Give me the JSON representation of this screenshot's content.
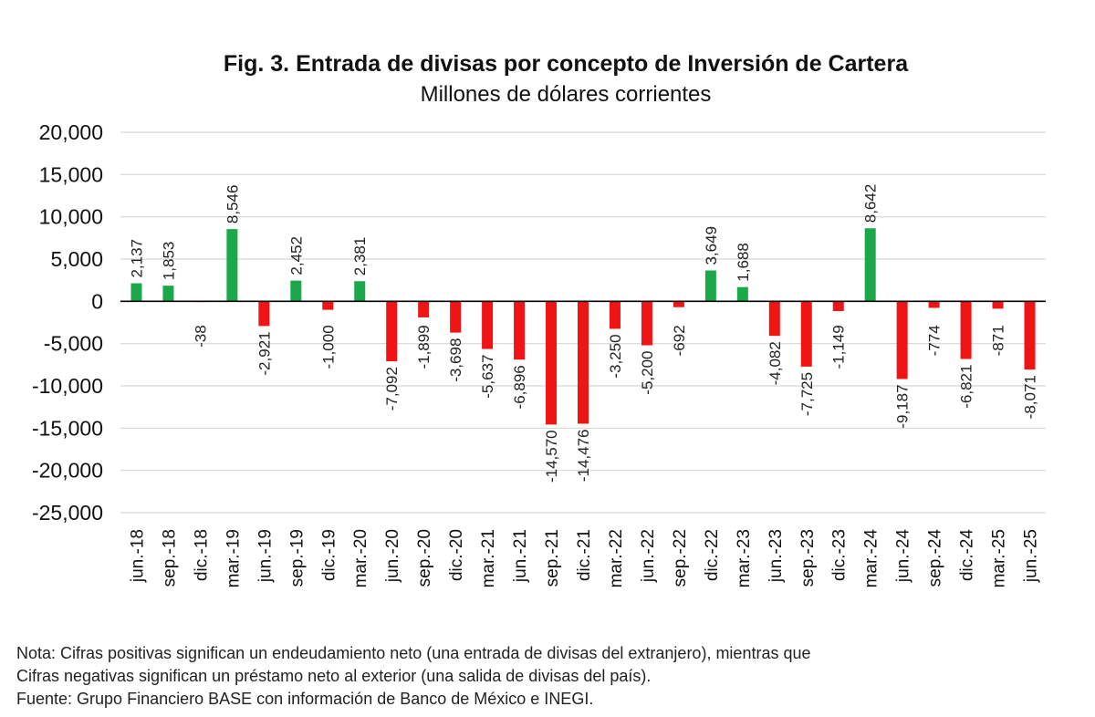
{
  "chart_data": {
    "type": "bar",
    "title": "Fig. 3. Entrada de divisas por concepto de Inversión de Cartera",
    "subtitle": "Millones de dólares corrientes",
    "xlabel": "",
    "ylabel": "",
    "ylim": [
      -25000,
      20000
    ],
    "yticks": [
      20000,
      15000,
      10000,
      5000,
      0,
      -5000,
      -10000,
      -15000,
      -20000,
      -25000
    ],
    "ytick_labels": [
      "20,000",
      "15,000",
      "10,000",
      "5,000",
      "0",
      "-5,000",
      "-10,000",
      "-15,000",
      "-20,000",
      "-25,000"
    ],
    "grid": true,
    "legend": "none",
    "positive_color": "#1aa84b",
    "negative_color": "#f01414",
    "categories": [
      "jun.-18",
      "sep.-18",
      "dic.-18",
      "mar.-19",
      "jun.-19",
      "sep.-19",
      "dic.-19",
      "mar.-20",
      "jun.-20",
      "sep.-20",
      "dic.-20",
      "mar.-21",
      "jun.-21",
      "sep.-21",
      "dic.-21",
      "mar.-22",
      "jun.-22",
      "sep.-22",
      "dic.-22",
      "mar.-23",
      "jun.-23",
      "sep.-23",
      "dic.-23",
      "mar.-24",
      "jun.-24",
      "sep.-24",
      "dic.-24",
      "mar.-25",
      "jun.-25"
    ],
    "values": [
      2137,
      1853,
      -38,
      8546,
      -2921,
      2452,
      -1000,
      2381,
      -7092,
      -1899,
      -3698,
      -5637,
      -6896,
      -14570,
      -14476,
      -3250,
      -5200,
      -692,
      3649,
      1688,
      -4082,
      -7725,
      -1149,
      8642,
      -9187,
      -774,
      -6821,
      -871,
      -8071
    ],
    "value_labels": [
      "2,137",
      "1,853",
      "-38",
      "8,546",
      "-2,921",
      "2,452",
      "-1,000",
      "2,381",
      "-7,092",
      "-1,899",
      "-3,698",
      "-5,637",
      "-6,896",
      "-14,570",
      "-14,476",
      "-3,250",
      "-5,200",
      "-692",
      "3,649",
      "1,688",
      "-4,082",
      "-7,725",
      "-1,149",
      "8,642",
      "-9,187",
      "-774",
      "-6,821",
      "-871",
      "-8,071"
    ]
  },
  "notes": {
    "line1": "Nota: Cifras positivas significan un endeudamiento neto (una entrada de divisas del extranjero), mientras que",
    "line2": "Cifras negativas significan un préstamo neto al exterior (una salida de divisas del país).",
    "line3": "Fuente: Grupo Financiero BASE con información de Banco de México e INEGI."
  }
}
